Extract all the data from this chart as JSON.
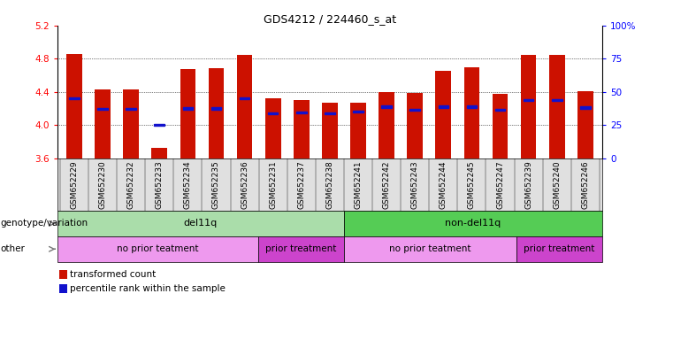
{
  "title": "GDS4212 / 224460_s_at",
  "samples": [
    "GSM652229",
    "GSM652230",
    "GSM652232",
    "GSM652233",
    "GSM652234",
    "GSM652235",
    "GSM652236",
    "GSM652231",
    "GSM652237",
    "GSM652238",
    "GSM652241",
    "GSM652242",
    "GSM652243",
    "GSM652244",
    "GSM652245",
    "GSM652247",
    "GSM652239",
    "GSM652240",
    "GSM652246"
  ],
  "bar_values": [
    4.86,
    4.43,
    4.43,
    3.72,
    4.67,
    4.68,
    4.85,
    4.32,
    4.3,
    4.27,
    4.27,
    4.4,
    4.39,
    4.65,
    4.7,
    4.38,
    4.84,
    4.85,
    4.41
  ],
  "blue_dot_values": [
    4.32,
    4.19,
    4.19,
    4.0,
    4.2,
    4.2,
    4.32,
    4.14,
    4.15,
    4.14,
    4.16,
    4.22,
    4.18,
    4.22,
    4.22,
    4.18,
    4.3,
    4.3,
    4.21
  ],
  "ymin": 3.6,
  "ymax": 5.2,
  "yticks": [
    3.6,
    4.0,
    4.4,
    4.8,
    5.2
  ],
  "bar_color": "#cc1100",
  "dot_color": "#1111cc",
  "bar_bottom": 3.6,
  "groups": [
    {
      "label": "del11q",
      "color": "#aaddaa",
      "start": 0,
      "end": 10
    },
    {
      "label": "non-del11q",
      "color": "#55cc55",
      "start": 10,
      "end": 19
    }
  ],
  "treatments": [
    {
      "label": "no prior teatment",
      "color": "#ee99ee",
      "start": 0,
      "end": 7
    },
    {
      "label": "prior treatment",
      "color": "#cc44cc",
      "start": 7,
      "end": 10
    },
    {
      "label": "no prior teatment",
      "color": "#ee99ee",
      "start": 10,
      "end": 16
    },
    {
      "label": "prior treatment",
      "color": "#cc44cc",
      "start": 16,
      "end": 19
    }
  ],
  "legend_items": [
    {
      "label": "transformed count",
      "color": "#cc1100"
    },
    {
      "label": "percentile rank within the sample",
      "color": "#1111cc"
    }
  ],
  "right_yticks": [
    0,
    25,
    50,
    75,
    100
  ],
  "right_yticklabels": [
    "0",
    "25",
    "50",
    "75",
    "100%"
  ],
  "gridlines": [
    4.0,
    4.4,
    4.8
  ]
}
